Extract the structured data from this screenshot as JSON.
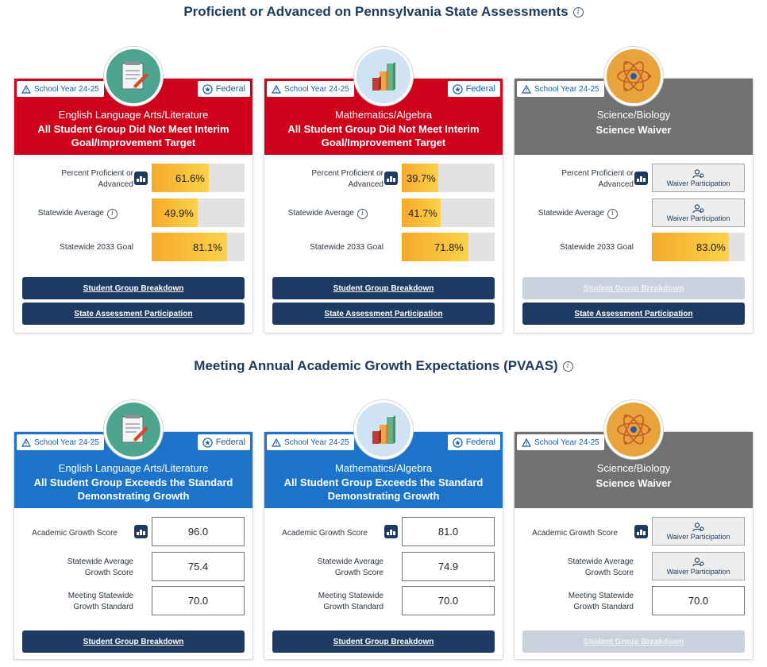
{
  "sections": [
    {
      "title": "Proficient or Advanced on Pennsylvania State Assessments"
    },
    {
      "title": "Meeting Annual Academic Growth Expectations (PVAAS)"
    }
  ],
  "colors": {
    "red": "#d0021b",
    "blue": "#1b74c9",
    "gray": "#717171",
    "navy": "#1d3a63"
  },
  "proficiency": [
    {
      "school_year": "School Year 24-25",
      "federal": "Federal",
      "subject": "English Language Arts/Literature",
      "status": "All Student Group Did Not Meet Interim Goal/Improvement Target",
      "icon": "notepad-icon",
      "labels": {
        "percent": "Percent Proficient or Advanced",
        "avg": "Statewide Average",
        "goal": "Statewide 2033 Goal"
      },
      "percent": {
        "value": 61.6,
        "text": "61.6%"
      },
      "avg": {
        "value": 49.9,
        "text": "49.9%"
      },
      "goal": {
        "value": 81.1,
        "text": "81.1%"
      },
      "buttons": {
        "breakdown": "Student Group Breakdown",
        "participation": "State Assessment Participation"
      }
    },
    {
      "school_year": "School Year 24-25",
      "federal": "Federal",
      "subject": "Mathematics/Algebra",
      "status": "All Student Group Did Not Meet Interim Goal/Improvement Target",
      "icon": "bar-chart-icon",
      "labels": {
        "percent": "Percent Proficient or Advanced",
        "avg": "Statewide Average",
        "goal": "Statewide 2033 Goal"
      },
      "percent": {
        "value": 39.7,
        "text": "39.7%"
      },
      "avg": {
        "value": 41.7,
        "text": "41.7%"
      },
      "goal": {
        "value": 71.8,
        "text": "71.8%"
      },
      "buttons": {
        "breakdown": "Student Group Breakdown",
        "participation": "State Assessment Participation"
      }
    },
    {
      "school_year": "School Year 24-25",
      "subject": "Science/Biology",
      "status": "Science Waiver",
      "icon": "atom-icon",
      "labels": {
        "percent": "Percent Proficient or Advanced",
        "avg": "Statewide Average",
        "goal": "Statewide 2033 Goal"
      },
      "waiver": "Waiver Participation",
      "goal": {
        "value": 83.0,
        "text": "83.0%"
      },
      "buttons": {
        "breakdown": "Student Group Breakdown",
        "participation": "State Assessment Participation"
      }
    }
  ],
  "growth": [
    {
      "school_year": "School Year 24-25",
      "federal": "Federal",
      "subject": "English Language Arts/Literature",
      "status": "All Student Group Exceeds the Standard Demonstrating Growth",
      "labels": {
        "score": "Academic Growth Score",
        "avg": "Statewide Average Growth Score",
        "standard": "Meeting Statewide Growth Standard"
      },
      "score": "96.0",
      "avg": "75.4",
      "standard": "70.0",
      "buttons": {
        "breakdown": "Student Group Breakdown"
      }
    },
    {
      "school_year": "School Year 24-25",
      "federal": "Federal",
      "subject": "Mathematics/Algebra",
      "status": "All Student Group Exceeds the Standard Demonstrating Growth",
      "labels": {
        "score": "Academic Growth Score",
        "avg": "Statewide Average Growth Score",
        "standard": "Meeting Statewide Growth Standard"
      },
      "score": "81.0",
      "avg": "74.9",
      "standard": "70.0",
      "buttons": {
        "breakdown": "Student Group Breakdown"
      }
    },
    {
      "school_year": "School Year 24-25",
      "subject": "Science/Biology",
      "status": "Science Waiver",
      "labels": {
        "score": "Academic Growth Score",
        "avg": "Statewide Average Growth Score",
        "standard": "Meeting Statewide Growth Standard"
      },
      "waiver": "Waiver Participation",
      "standard": "70.0",
      "buttons": {
        "breakdown": "Student Group Breakdown"
      }
    }
  ]
}
